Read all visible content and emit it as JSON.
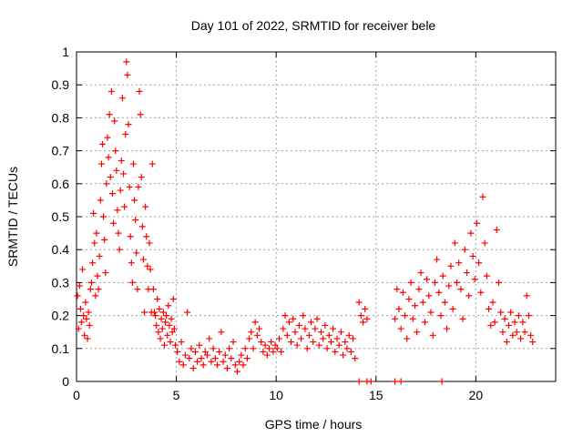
{
  "chart_data": {
    "type": "scatter",
    "title": "Day 101 of 2022, SRMTID for receiver bele",
    "xlabel": "GPS time / hours",
    "ylabel": "SRMTID / TECUs",
    "xlim": [
      0,
      24
    ],
    "ylim": [
      0,
      1
    ],
    "x_ticks": [
      "0",
      "5",
      "10",
      "15",
      "20"
    ],
    "y_ticks": [
      "0",
      "0.1",
      "0.2",
      "0.3",
      "0.4",
      "0.5",
      "0.6",
      "0.7",
      "0.8",
      "0.9",
      "1"
    ],
    "grid": true,
    "marker": "+",
    "series": [
      {
        "name": "SRMTID",
        "color": "#ff0000",
        "points": [
          [
            0.05,
            0.26
          ],
          [
            0.1,
            0.16
          ],
          [
            0.15,
            0.29
          ],
          [
            0.2,
            0.22
          ],
          [
            0.25,
            0.18
          ],
          [
            0.3,
            0.34
          ],
          [
            0.35,
            0.2
          ],
          [
            0.4,
            0.14
          ],
          [
            0.45,
            0.24
          ],
          [
            0.5,
            0.19
          ],
          [
            0.55,
            0.13
          ],
          [
            0.6,
            0.21
          ],
          [
            0.65,
            0.17
          ],
          [
            0.7,
            0.28
          ],
          [
            0.75,
            0.3
          ],
          [
            0.8,
            0.36
          ],
          [
            0.85,
            0.51
          ],
          [
            0.9,
            0.42
          ],
          [
            0.95,
            0.26
          ],
          [
            1.0,
            0.45
          ],
          [
            1.05,
            0.32
          ],
          [
            1.1,
            0.28
          ],
          [
            1.15,
            0.38
          ],
          [
            1.2,
            0.55
          ],
          [
            1.25,
            0.66
          ],
          [
            1.3,
            0.72
          ],
          [
            1.35,
            0.5
          ],
          [
            1.4,
            0.43
          ],
          [
            1.45,
            0.33
          ],
          [
            1.5,
            0.6
          ],
          [
            1.55,
            0.74
          ],
          [
            1.6,
            0.68
          ],
          [
            1.65,
            0.81
          ],
          [
            1.7,
            0.62
          ],
          [
            1.75,
            0.88
          ],
          [
            1.8,
            0.57
          ],
          [
            1.85,
            0.48
          ],
          [
            1.9,
            0.79
          ],
          [
            1.95,
            0.7
          ],
          [
            2.0,
            0.64
          ],
          [
            2.05,
            0.52
          ],
          [
            2.1,
            0.45
          ],
          [
            2.15,
            0.4
          ],
          [
            2.2,
            0.58
          ],
          [
            2.25,
            0.67
          ],
          [
            2.3,
            0.86
          ],
          [
            2.35,
            0.63
          ],
          [
            2.4,
            0.53
          ],
          [
            2.45,
            0.75
          ],
          [
            2.5,
            0.97
          ],
          [
            2.55,
            0.93
          ],
          [
            2.6,
            0.78
          ],
          [
            2.65,
            0.59
          ],
          [
            2.7,
            0.44
          ],
          [
            2.75,
            0.36
          ],
          [
            2.8,
            0.3
          ],
          [
            2.85,
            0.66
          ],
          [
            2.9,
            0.55
          ],
          [
            2.95,
            0.49
          ],
          [
            3.0,
            0.39
          ],
          [
            3.05,
            0.28
          ],
          [
            3.1,
            0.59
          ],
          [
            3.15,
            0.88
          ],
          [
            3.2,
            0.81
          ],
          [
            3.25,
            0.62
          ],
          [
            3.3,
            0.47
          ],
          [
            3.35,
            0.37
          ],
          [
            3.4,
            0.21
          ],
          [
            3.45,
            0.53
          ],
          [
            3.5,
            0.44
          ],
          [
            3.55,
            0.35
          ],
          [
            3.6,
            0.28
          ],
          [
            3.65,
            0.42
          ],
          [
            3.7,
            0.34
          ],
          [
            3.75,
            0.21
          ],
          [
            3.8,
            0.66
          ],
          [
            3.85,
            0.28
          ],
          [
            3.9,
            0.21
          ],
          [
            3.95,
            0.2
          ],
          [
            4.0,
            0.17
          ],
          [
            4.05,
            0.25
          ],
          [
            4.1,
            0.15
          ],
          [
            4.15,
            0.22
          ],
          [
            4.2,
            0.13
          ],
          [
            4.25,
            0.19
          ],
          [
            4.3,
            0.16
          ],
          [
            4.35,
            0.21
          ],
          [
            4.4,
            0.11
          ],
          [
            4.45,
            0.18
          ],
          [
            4.5,
            0.2
          ],
          [
            4.55,
            0.14
          ],
          [
            4.6,
            0.23
          ],
          [
            4.65,
            0.17
          ],
          [
            4.7,
            0.12
          ],
          [
            4.75,
            0.19
          ],
          [
            4.8,
            0.15
          ],
          [
            4.85,
            0.25
          ],
          [
            4.9,
            0.16
          ],
          [
            4.95,
            0.11
          ],
          [
            5.05,
            0.09
          ],
          [
            5.15,
            0.06
          ],
          [
            5.25,
            0.12
          ],
          [
            5.35,
            0.05
          ],
          [
            5.45,
            0.08
          ],
          [
            5.55,
            0.21
          ],
          [
            5.65,
            0.07
          ],
          [
            5.75,
            0.1
          ],
          [
            5.85,
            0.04
          ],
          [
            5.95,
            0.09
          ],
          [
            6.05,
            0.06
          ],
          [
            6.15,
            0.11
          ],
          [
            6.25,
            0.07
          ],
          [
            6.35,
            0.05
          ],
          [
            6.45,
            0.09
          ],
          [
            6.55,
            0.08
          ],
          [
            6.65,
            0.13
          ],
          [
            6.75,
            0.06
          ],
          [
            6.85,
            0.1
          ],
          [
            6.95,
            0.07
          ],
          [
            7.05,
            0.05
          ],
          [
            7.15,
            0.09
          ],
          [
            7.25,
            0.15
          ],
          [
            7.35,
            0.06
          ],
          [
            7.45,
            0.08
          ],
          [
            7.55,
            0.04
          ],
          [
            7.65,
            0.1
          ],
          [
            7.75,
            0.07
          ],
          [
            7.85,
            0.12
          ],
          [
            7.95,
            0.05
          ],
          [
            8.05,
            0.03
          ],
          [
            8.15,
            0.06
          ],
          [
            8.25,
            0.08
          ],
          [
            8.35,
            0.05
          ],
          [
            8.45,
            0.1
          ],
          [
            8.55,
            0.07
          ],
          [
            8.65,
            0.13
          ],
          [
            8.75,
            0.15
          ],
          [
            8.85,
            0.1
          ],
          [
            8.95,
            0.18
          ],
          [
            9.05,
            0.14
          ],
          [
            9.15,
            0.16
          ],
          [
            9.25,
            0.12
          ],
          [
            9.35,
            0.09
          ],
          [
            9.45,
            0.11
          ],
          [
            9.55,
            0.08
          ],
          [
            9.65,
            0.1
          ],
          [
            9.75,
            0.12
          ],
          [
            9.85,
            0.09
          ],
          [
            9.95,
            0.11
          ],
          [
            10.05,
            0.1
          ],
          [
            10.15,
            0.13
          ],
          [
            10.25,
            0.09
          ],
          [
            10.35,
            0.16
          ],
          [
            10.45,
            0.2
          ],
          [
            10.55,
            0.14
          ],
          [
            10.65,
            0.18
          ],
          [
            10.75,
            0.12
          ],
          [
            10.85,
            0.19
          ],
          [
            10.95,
            0.15
          ],
          [
            11.05,
            0.11
          ],
          [
            11.15,
            0.17
          ],
          [
            11.25,
            0.13
          ],
          [
            11.35,
            0.2
          ],
          [
            11.45,
            0.16
          ],
          [
            11.55,
            0.1
          ],
          [
            11.65,
            0.14
          ],
          [
            11.75,
            0.18
          ],
          [
            11.85,
            0.12
          ],
          [
            11.95,
            0.16
          ],
          [
            12.05,
            0.19
          ],
          [
            12.15,
            0.11
          ],
          [
            12.25,
            0.15
          ],
          [
            12.35,
            0.13
          ],
          [
            12.45,
            0.17
          ],
          [
            12.55,
            0.1
          ],
          [
            12.65,
            0.14
          ],
          [
            12.75,
            0.12
          ],
          [
            12.85,
            0.16
          ],
          [
            12.95,
            0.09
          ],
          [
            13.05,
            0.13
          ],
          [
            13.15,
            0.11
          ],
          [
            13.25,
            0.15
          ],
          [
            13.35,
            0.08
          ],
          [
            13.45,
            0.12
          ],
          [
            13.55,
            0.1
          ],
          [
            13.65,
            0.14
          ],
          [
            13.75,
            0.09
          ],
          [
            13.85,
            0.13
          ],
          [
            13.95,
            0.07
          ],
          [
            14.15,
            0.24
          ],
          [
            14.25,
            0.2
          ],
          [
            14.35,
            0.18
          ],
          [
            14.45,
            0.22
          ],
          [
            14.55,
            0.19
          ],
          [
            14.15,
            0.0
          ],
          [
            14.55,
            0.0
          ],
          [
            14.75,
            0.0
          ],
          [
            15.95,
            0.0
          ],
          [
            16.25,
            0.0
          ],
          [
            18.3,
            0.0
          ],
          [
            15.95,
            0.19
          ],
          [
            16.05,
            0.28
          ],
          [
            16.15,
            0.22
          ],
          [
            16.25,
            0.16
          ],
          [
            16.35,
            0.27
          ],
          [
            16.45,
            0.2
          ],
          [
            16.55,
            0.13
          ],
          [
            16.65,
            0.25
          ],
          [
            16.75,
            0.3
          ],
          [
            16.85,
            0.19
          ],
          [
            16.95,
            0.23
          ],
          [
            17.05,
            0.15
          ],
          [
            17.15,
            0.28
          ],
          [
            17.25,
            0.33
          ],
          [
            17.35,
            0.24
          ],
          [
            17.45,
            0.18
          ],
          [
            17.55,
            0.31
          ],
          [
            17.65,
            0.26
          ],
          [
            17.75,
            0.21
          ],
          [
            17.85,
            0.14
          ],
          [
            17.95,
            0.3
          ],
          [
            18.05,
            0.37
          ],
          [
            18.15,
            0.27
          ],
          [
            18.25,
            0.2
          ],
          [
            18.35,
            0.32
          ],
          [
            18.45,
            0.24
          ],
          [
            18.55,
            0.16
          ],
          [
            18.65,
            0.29
          ],
          [
            18.75,
            0.35
          ],
          [
            18.85,
            0.22
          ],
          [
            18.95,
            0.42
          ],
          [
            19.05,
            0.3
          ],
          [
            19.15,
            0.36
          ],
          [
            19.25,
            0.28
          ],
          [
            19.35,
            0.19
          ],
          [
            19.45,
            0.4
          ],
          [
            19.55,
            0.33
          ],
          [
            19.65,
            0.26
          ],
          [
            19.75,
            0.45
          ],
          [
            19.85,
            0.38
          ],
          [
            19.95,
            0.31
          ],
          [
            20.05,
            0.48
          ],
          [
            20.15,
            0.36
          ],
          [
            20.25,
            0.27
          ],
          [
            20.35,
            0.56
          ],
          [
            20.45,
            0.42
          ],
          [
            20.55,
            0.32
          ],
          [
            20.65,
            0.22
          ],
          [
            20.75,
            0.17
          ],
          [
            20.85,
            0.24
          ],
          [
            20.95,
            0.18
          ],
          [
            21.05,
            0.46
          ],
          [
            21.15,
            0.3
          ],
          [
            21.25,
            0.21
          ],
          [
            21.35,
            0.15
          ],
          [
            21.45,
            0.19
          ],
          [
            21.55,
            0.12
          ],
          [
            21.65,
            0.17
          ],
          [
            21.75,
            0.21
          ],
          [
            21.85,
            0.14
          ],
          [
            21.95,
            0.18
          ],
          [
            22.05,
            0.15
          ],
          [
            22.15,
            0.2
          ],
          [
            22.25,
            0.13
          ],
          [
            22.35,
            0.18
          ],
          [
            22.45,
            0.15
          ],
          [
            22.55,
            0.26
          ],
          [
            22.65,
            0.2
          ],
          [
            22.75,
            0.14
          ],
          [
            22.85,
            0.12
          ]
        ]
      }
    ]
  }
}
